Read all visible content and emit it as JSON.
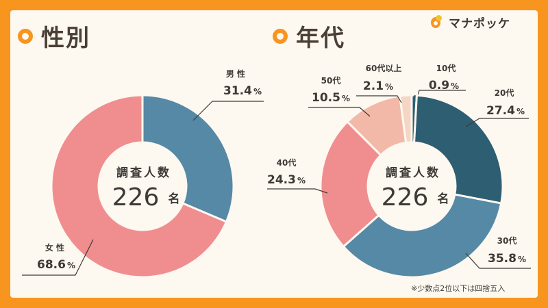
{
  "brand": {
    "name": "マナポッケ",
    "logo_icon": "pocket-logo-icon"
  },
  "colors": {
    "accent": "#f7951f"
  },
  "center": {
    "title": "調査人数",
    "count": "226",
    "unit": "名"
  },
  "footnote": "※少数点2位以下は四捨五入",
  "chart_data": [
    {
      "type": "pie",
      "title": "性別",
      "donut": true,
      "slices": [
        {
          "label": "男 性",
          "value": 31.4,
          "display": "31.4",
          "unit": "%",
          "color": "#5589a6"
        },
        {
          "label": "女 性",
          "value": 68.6,
          "display": "68.6",
          "unit": "%",
          "color": "#f08e8f"
        }
      ]
    },
    {
      "type": "pie",
      "title": "年代",
      "donut": true,
      "slices": [
        {
          "label": "10代",
          "value": 0.9,
          "display": "0.9",
          "unit": "%",
          "color": "#2e5e72"
        },
        {
          "label": "20代",
          "value": 27.4,
          "display": "27.4",
          "unit": "%",
          "color": "#2e5e72"
        },
        {
          "label": "30代",
          "value": 35.8,
          "display": "35.8",
          "unit": "%",
          "color": "#5589a6"
        },
        {
          "label": "40代",
          "value": 24.3,
          "display": "24.3",
          "unit": "%",
          "color": "#f08e8f"
        },
        {
          "label": "50代",
          "value": 10.5,
          "display": "10.5",
          "unit": "%",
          "color": "#f2b8a8"
        },
        {
          "label": "60代以上",
          "value": 2.1,
          "display": "2.1",
          "unit": "%",
          "color": "#f5d6c4"
        }
      ]
    }
  ]
}
